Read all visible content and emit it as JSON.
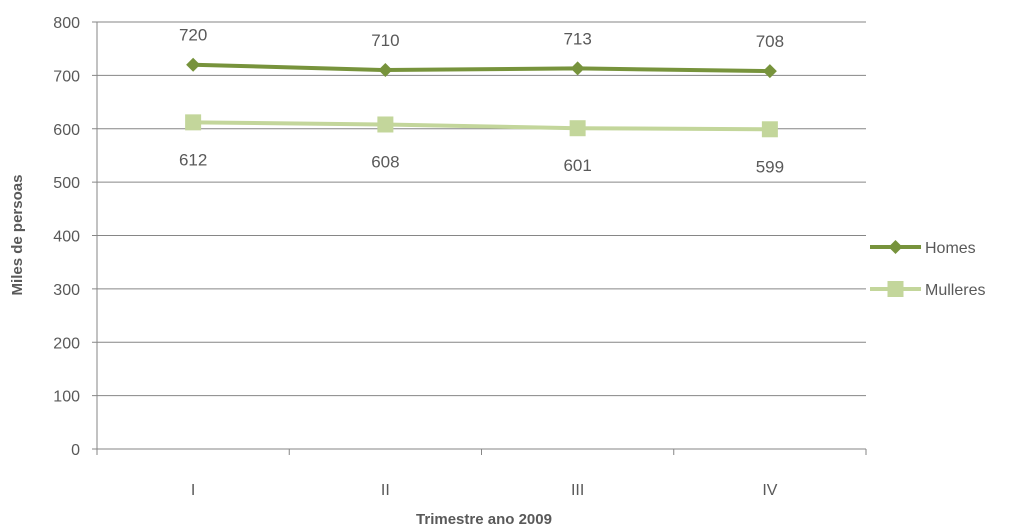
{
  "chart_data": {
    "type": "line",
    "categories": [
      "I",
      "II",
      "III",
      "IV"
    ],
    "series": [
      {
        "name": "Homes",
        "values": [
          720,
          710,
          713,
          708
        ],
        "color": "#77933C",
        "marker": "diamond"
      },
      {
        "name": "Mulleres",
        "values": [
          612,
          608,
          601,
          599
        ],
        "color": "#C3D69B",
        "marker": "square"
      }
    ],
    "title": "",
    "xlabel": "Trimestre ano 2009",
    "ylabel": "Miles de persoas",
    "ylim": [
      0,
      800
    ],
    "yticks": [
      0,
      100,
      200,
      300,
      400,
      500,
      600,
      700,
      800
    ],
    "grid": true,
    "legend_position": "right",
    "data_label_position": {
      "Homes": "above",
      "Mulleres": "below"
    }
  }
}
